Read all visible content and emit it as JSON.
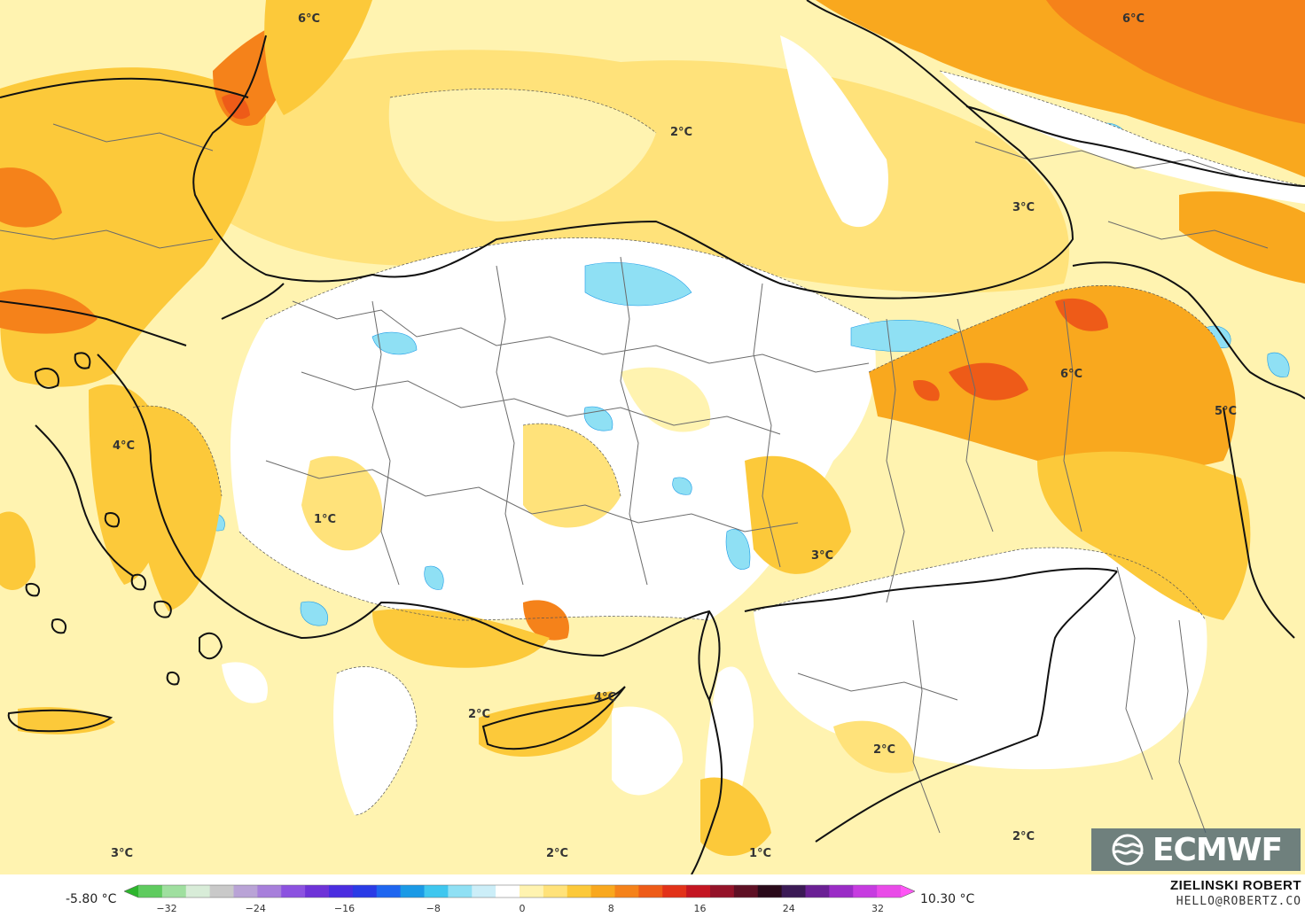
{
  "map_labels": [
    {
      "text": "6°C"
    },
    {
      "text": "6°C"
    },
    {
      "text": "2°C"
    },
    {
      "text": "3°C"
    },
    {
      "text": "6°C"
    },
    {
      "text": "5°C"
    },
    {
      "text": "4°C"
    },
    {
      "text": "1°C"
    },
    {
      "text": "3°C"
    },
    {
      "text": "2°C"
    },
    {
      "text": "4°C"
    },
    {
      "text": "2°C"
    },
    {
      "text": "2°C"
    },
    {
      "text": "3°C"
    },
    {
      "text": "2°C"
    },
    {
      "text": "1°C"
    }
  ],
  "legend": {
    "min_label": "-5.80 °C",
    "max_label": "10.30 °C",
    "ticks": [
      "−32",
      "−24",
      "−16",
      "−8",
      "0",
      "8",
      "16",
      "24",
      "32"
    ],
    "colors": [
      "#2db52d",
      "#5fcb5f",
      "#9fdf9f",
      "#d8ecd8",
      "#c9c9c9",
      "#b9a3d6",
      "#a77fdb",
      "#8c52e0",
      "#6e33d8",
      "#4a2de0",
      "#2a3be6",
      "#1f66f0",
      "#1b9ae6",
      "#3fc7ef",
      "#8fe0f4",
      "#cceef8",
      "#ffffff",
      "#fff3b0",
      "#ffe27a",
      "#fcc93a",
      "#f9a81e",
      "#f5821a",
      "#ee5b18",
      "#e23219",
      "#c41622",
      "#941329",
      "#5e1024",
      "#2a0a1a",
      "#3b1a55",
      "#6a2094",
      "#9a2cc6",
      "#c63ce0",
      "#e94be8",
      "#ff55f5"
    ]
  },
  "footer": {
    "author": "ZIELINSKI ROBERT",
    "email": "HELLO@ROBERTZ.CO"
  },
  "logo": {
    "text": "ECMWF"
  },
  "colors": {
    "white_band": "#ffffff",
    "light_yellow": "#fff3b0",
    "yellow": "#ffe27a",
    "gold": "#fcc93a",
    "orange": "#f9a81e",
    "dark_orange": "#f5821a",
    "red_orange": "#ee5b18",
    "light_blue": "#cceef8",
    "blue": "#8fe0f4",
    "deep_blue": "#3fc7ef"
  }
}
